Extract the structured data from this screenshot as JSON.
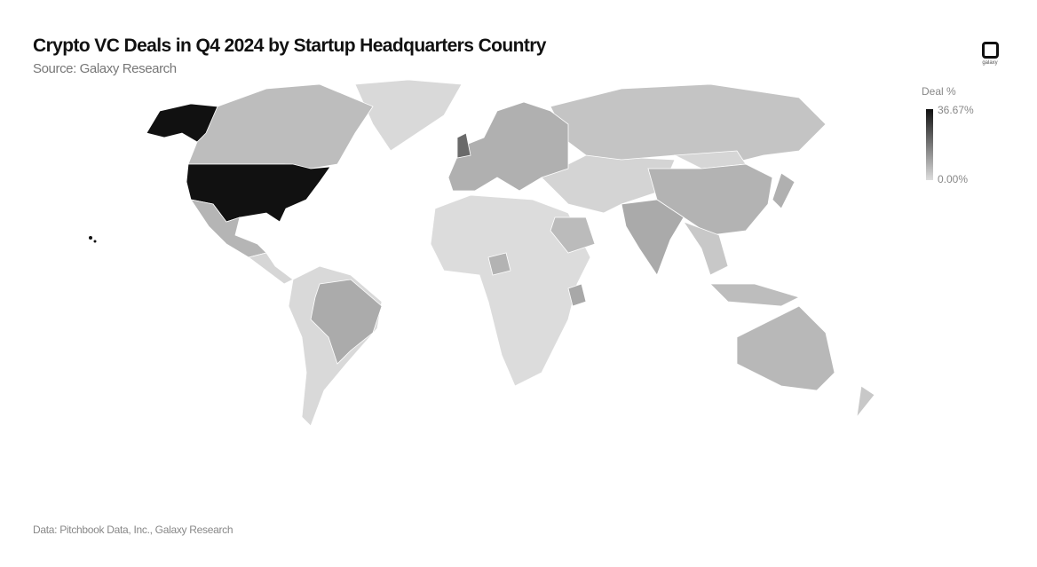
{
  "header": {
    "title": "Crypto VC Deals in Q4 2024 by Startup Headquarters Country",
    "subtitle": "Source: Galaxy Research"
  },
  "logo": {
    "text": "galaxy"
  },
  "footer": {
    "text": "Data: Pitchbook Data, Inc., Galaxy Research"
  },
  "chart_data": {
    "type": "choropleth",
    "title": "Crypto VC Deals in Q4 2024 by Startup Headquarters Country",
    "legend": {
      "title": "Deal %",
      "max_label": "36.67%",
      "min_label": "0.00%",
      "range": [
        0,
        36.67
      ],
      "color_low": "#dddddd",
      "color_high": "#111111",
      "placement": "top-right"
    },
    "highlighted": {
      "darkest": "United States",
      "dark": [
        "United Kingdom"
      ],
      "medium": [
        "Canada",
        "Brazil",
        "India",
        "China",
        "Australia",
        "Europe",
        "Russia",
        "Mexico",
        "Nigeria",
        "Kenya",
        "Saudi Arabia",
        "Japan",
        "Indonesia"
      ]
    }
  }
}
